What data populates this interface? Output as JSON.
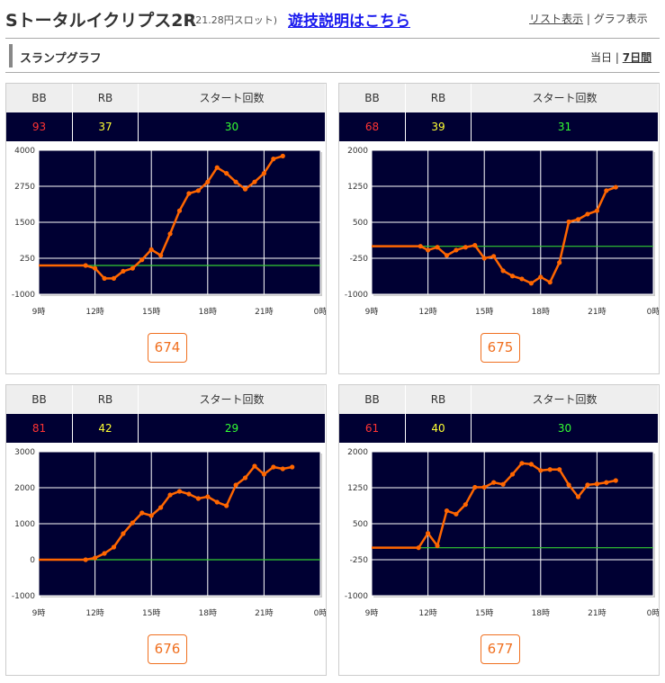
{
  "header": {
    "title": "Sトータルイクリプス2R",
    "subtitle": "(21.28円スロット)",
    "link": "遊技説明はこちら",
    "views": [
      "リスト表示",
      "グラフ表示"
    ],
    "separator": "|"
  },
  "section": {
    "title": "スランプグラフ",
    "ranges": [
      "当日",
      "7日間"
    ],
    "separator": "|"
  },
  "panels": [
    {
      "columns": [
        "BB",
        "RB",
        "スタート回数"
      ],
      "stats": [
        93,
        37,
        30
      ],
      "number": 674
    },
    {
      "columns": [
        "BB",
        "RB",
        "スタート回数"
      ],
      "stats": [
        68,
        39,
        31
      ],
      "number": 675
    },
    {
      "columns": [
        "BB",
        "RB",
        "スタート回数"
      ],
      "stats": [
        81,
        42,
        29
      ],
      "number": 676
    },
    {
      "columns": [
        "BB",
        "RB",
        "スタート回数"
      ],
      "stats": [
        61,
        40,
        30
      ],
      "number": 677
    }
  ],
  "stat_colors": [
    "#ff3333",
    "#ffff33",
    "#33ff33"
  ],
  "chart_data": [
    {
      "type": "line",
      "color": "#ff6600",
      "reference_line": {
        "value": 0,
        "color": "#33cc33"
      },
      "grid": true,
      "x": [
        9,
        11.5,
        12,
        12.5,
        13,
        13.5,
        14,
        14.5,
        15,
        15.5,
        16,
        16.5,
        17,
        17.5,
        18,
        18.5,
        19,
        19.5,
        20,
        20.5,
        21,
        21.5,
        22
      ],
      "values": [
        0,
        0,
        -100,
        -450,
        -450,
        -200,
        -100,
        200,
        550,
        350,
        1100,
        1900,
        2500,
        2600,
        2900,
        3400,
        3200,
        2900,
        2650,
        2900,
        3200,
        3700,
        3800
      ],
      "xlim": [
        9,
        24
      ],
      "xticks": [
        {
          "value": 9,
          "label": "9時"
        },
        {
          "value": 12,
          "label": "12時"
        },
        {
          "value": 15,
          "label": "15時"
        },
        {
          "value": 18,
          "label": "18時"
        },
        {
          "value": 21,
          "label": "21時"
        },
        {
          "value": 24,
          "label": "0時"
        }
      ],
      "ylim": [
        -1000,
        4000
      ],
      "yticks": [
        -1000,
        250,
        1500,
        2750,
        4000
      ]
    },
    {
      "type": "line",
      "color": "#ff6600",
      "reference_line": {
        "value": 0,
        "color": "#33cc33"
      },
      "grid": true,
      "x": [
        9,
        11.6,
        12,
        12.5,
        13,
        13.5,
        14,
        14.5,
        15,
        15.5,
        16,
        16.5,
        17,
        17.5,
        18,
        18.5,
        19,
        19.5,
        20,
        20.5,
        21,
        21.5,
        22
      ],
      "values": [
        0,
        0,
        -80,
        -20,
        -190,
        -80,
        -20,
        20,
        -250,
        -210,
        -510,
        -620,
        -680,
        -770,
        -640,
        -750,
        -340,
        510,
        560,
        670,
        740,
        1160,
        1230
      ],
      "xlim": [
        9,
        24
      ],
      "xticks": [
        {
          "value": 9,
          "label": "9時"
        },
        {
          "value": 12,
          "label": "12時"
        },
        {
          "value": 15,
          "label": "15時"
        },
        {
          "value": 18,
          "label": "18時"
        },
        {
          "value": 21,
          "label": "21時"
        },
        {
          "value": 24,
          "label": "0時"
        }
      ],
      "ylim": [
        -1000,
        2000
      ],
      "yticks": [
        -1000,
        -250,
        500,
        1250,
        2000
      ]
    },
    {
      "type": "line",
      "color": "#ff6600",
      "reference_line": {
        "value": 0,
        "color": "#33cc33"
      },
      "grid": true,
      "x": [
        9,
        11.5,
        12,
        12.5,
        13,
        13.5,
        14,
        14.5,
        15,
        15.5,
        16,
        16.5,
        17,
        17.5,
        18,
        18.5,
        19,
        19.5,
        20,
        20.5,
        21,
        21.5,
        22,
        22.5
      ],
      "values": [
        0,
        0,
        50,
        175,
        350,
        725,
        1025,
        1300,
        1225,
        1450,
        1800,
        1900,
        1825,
        1700,
        1750,
        1600,
        1500,
        2075,
        2275,
        2600,
        2375,
        2575,
        2525,
        2575
      ],
      "xlim": [
        9,
        24
      ],
      "xticks": [
        {
          "value": 9,
          "label": "9時"
        },
        {
          "value": 12,
          "label": "12時"
        },
        {
          "value": 15,
          "label": "15時"
        },
        {
          "value": 18,
          "label": "18時"
        },
        {
          "value": 21,
          "label": "21時"
        },
        {
          "value": 24,
          "label": "0時"
        }
      ],
      "ylim": [
        -1000,
        3000
      ],
      "yticks": [
        -1000,
        0,
        1000,
        2000,
        3000
      ]
    },
    {
      "type": "line",
      "color": "#ff6600",
      "reference_line": {
        "value": 0,
        "color": "#33cc33"
      },
      "grid": true,
      "x": [
        9,
        11.5,
        12,
        12.5,
        13,
        13.5,
        14,
        14.5,
        15,
        15.5,
        16,
        16.5,
        17,
        17.5,
        18,
        18.5,
        19,
        19.5,
        20,
        20.5,
        21,
        21.5,
        22
      ],
      "values": [
        0,
        0,
        300,
        40,
        770,
        700,
        900,
        1260,
        1260,
        1360,
        1320,
        1530,
        1760,
        1740,
        1610,
        1630,
        1630,
        1310,
        1060,
        1310,
        1330,
        1360,
        1400
      ],
      "xlim": [
        9,
        24
      ],
      "xticks": [
        {
          "value": 9,
          "label": "9時"
        },
        {
          "value": 12,
          "label": "12時"
        },
        {
          "value": 15,
          "label": "15時"
        },
        {
          "value": 18,
          "label": "18時"
        },
        {
          "value": 21,
          "label": "21時"
        },
        {
          "value": 24,
          "label": "0時"
        }
      ],
      "ylim": [
        -1000,
        2000
      ],
      "yticks": [
        -1000,
        -250,
        500,
        1250,
        2000
      ]
    }
  ]
}
